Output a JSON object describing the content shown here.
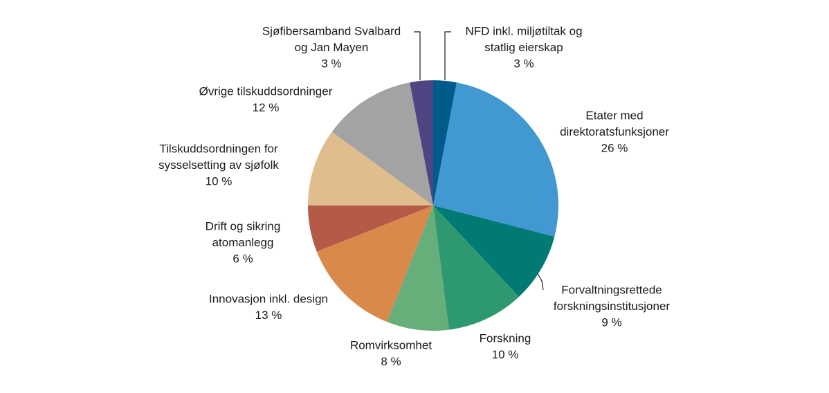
{
  "chart_data": {
    "type": "pie",
    "categories": [
      [
        "NFD inkl. miljøtiltak og",
        "statlig eierskap"
      ],
      [
        "Etater med",
        "direktoratsfunksjoner"
      ],
      [
        "Forvaltningsrettede",
        "forskningsinstitusjoner"
      ],
      [
        "Forskning"
      ],
      [
        "Romvirksomhet"
      ],
      [
        "Innovasjon inkl. design"
      ],
      [
        "Drift og sikring",
        "atomanlegg"
      ],
      [
        "Tilskuddsordningen for",
        "sysselsetting av sjøfolk"
      ],
      [
        "Øvrige tilskuddsordninger"
      ],
      [
        "Sjøfibersamband Svalbard",
        "og Jan Mayen"
      ]
    ],
    "values": [
      3,
      26,
      9,
      10,
      8,
      13,
      6,
      10,
      12,
      3
    ],
    "value_labels": [
      "3 %",
      "26 %",
      "9 %",
      "10 %",
      "8 %",
      "13 %",
      "6 %",
      "10 %",
      "12 %",
      "3 %"
    ],
    "colors": [
      "#005a8c",
      "#4299d2",
      "#007a73",
      "#2e9970",
      "#66ae7a",
      "#d98a4a",
      "#b55a46",
      "#e0bd8c",
      "#a3a3a3",
      "#4e4682"
    ]
  }
}
